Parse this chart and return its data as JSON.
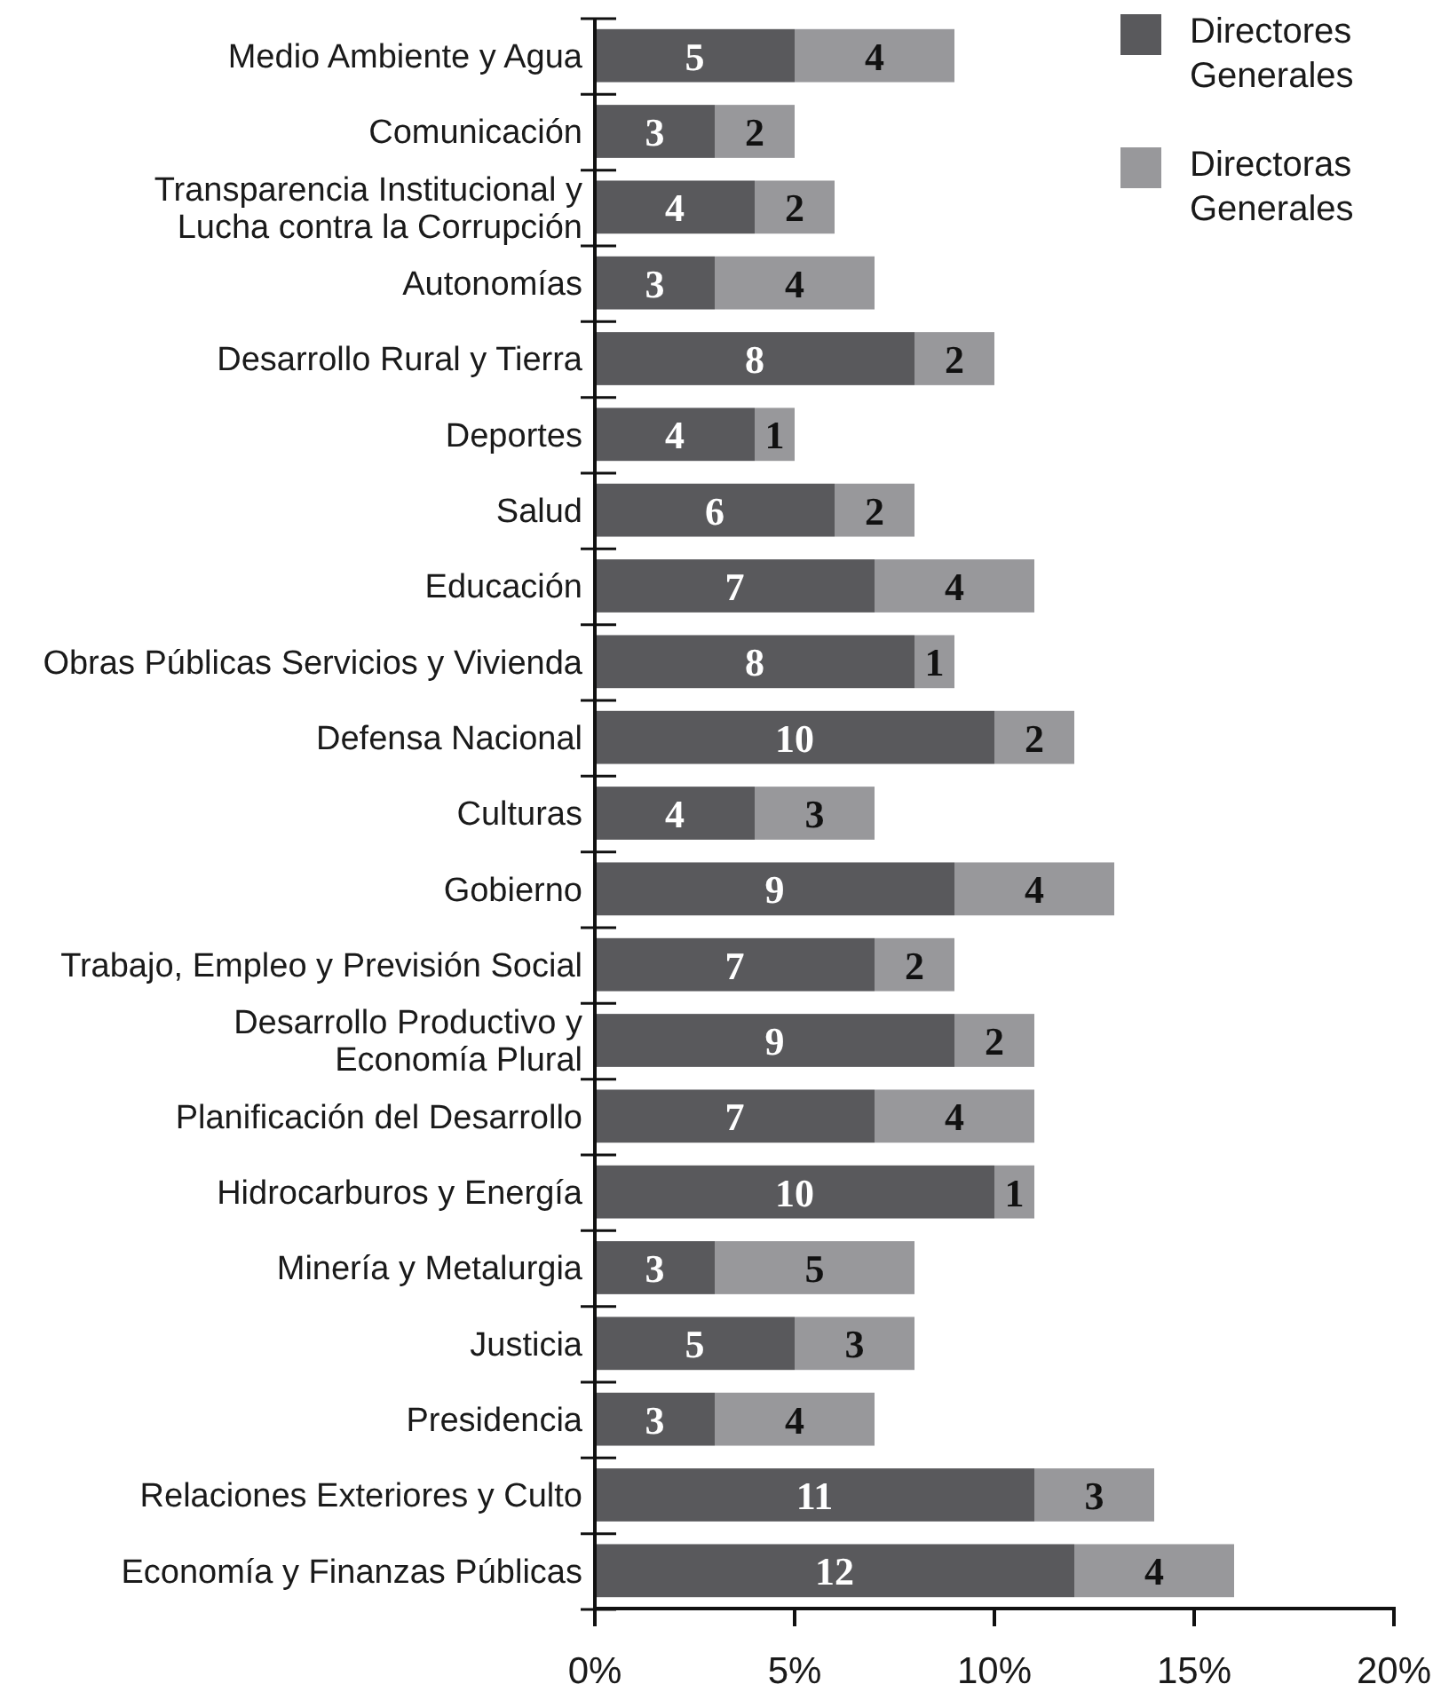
{
  "chart_data": {
    "type": "bar",
    "orientation": "horizontal",
    "stacked": true,
    "data_labels": true,
    "legend": "top right",
    "categories": [
      "Medio Ambiente y Agua",
      "Comunicación",
      "Transparencia Institucional y\nLucha contra la Corrupción",
      "Autonomías",
      "Desarrollo Rural y Tierra",
      "Deportes",
      "Salud",
      "Educación",
      "Obras Públicas Servicios y Vivienda",
      "Defensa Nacional",
      "Culturas",
      "Gobierno",
      "Trabajo, Empleo y Previsión Social",
      "Desarrollo Productivo y\nEconomía Plural",
      "Planificación del Desarrollo",
      "Hidrocarburos y Energía",
      "Minería y Metalurgia",
      "Justicia",
      "Presidencia",
      "Relaciones Exteriores y Culto",
      "Economía y Finanzas Públicas"
    ],
    "series": [
      {
        "name": "Directores Generales",
        "color": "#59595c",
        "values": [
          5,
          3,
          4,
          3,
          8,
          4,
          6,
          7,
          8,
          10,
          4,
          9,
          7,
          9,
          7,
          10,
          3,
          5,
          3,
          11,
          12
        ]
      },
      {
        "name": "Directoras Generales",
        "color": "#98989b",
        "values": [
          4,
          2,
          2,
          4,
          2,
          1,
          2,
          4,
          1,
          2,
          3,
          4,
          2,
          2,
          4,
          1,
          5,
          3,
          4,
          3,
          4
        ]
      }
    ],
    "xlim": [
      0,
      20
    ],
    "xticks": [
      {
        "value": 0,
        "label": "0%"
      },
      {
        "value": 5,
        "label": "5%"
      },
      {
        "value": 10,
        "label": "10%"
      },
      {
        "value": 15,
        "label": "15%"
      },
      {
        "value": 20,
        "label": "20%"
      }
    ]
  }
}
